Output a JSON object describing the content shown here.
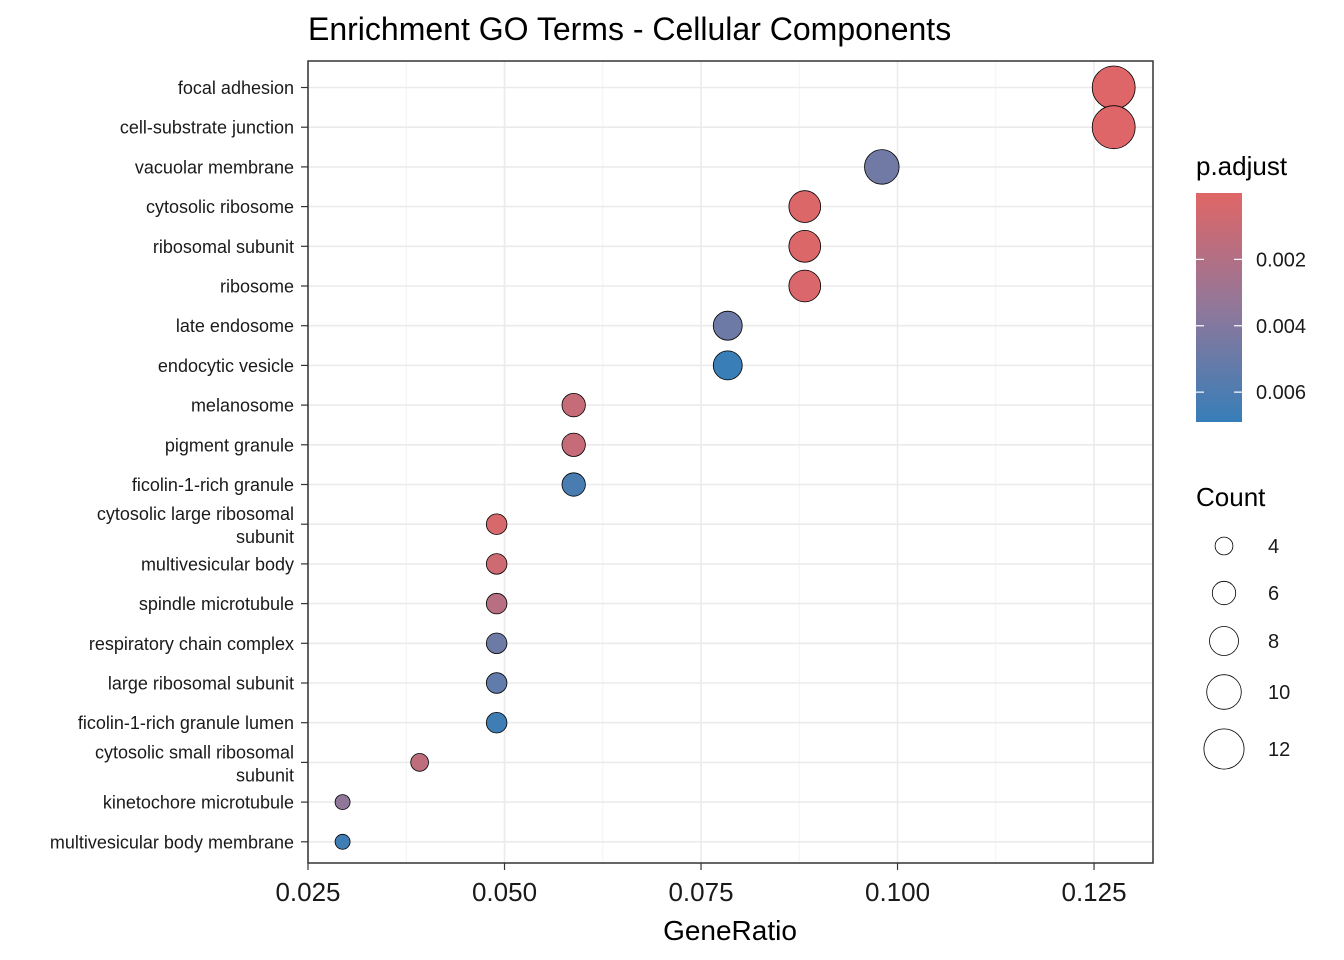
{
  "chart_data": {
    "type": "scatter",
    "title": "Enrichment GO Terms - Cellular Components",
    "xlabel": "GeneRatio",
    "ylabel": "",
    "xlim": [
      0.025,
      0.1325
    ],
    "x_ticks": [
      "0.025",
      "0.050",
      "0.075",
      "0.100",
      "0.125"
    ],
    "x_tick_values": [
      0.025,
      0.05,
      0.075,
      0.1,
      0.125
    ],
    "grid": true,
    "categories": [
      "focal adhesion",
      "cell-substrate junction",
      "vacuolar membrane",
      "cytosolic ribosome",
      "ribosomal subunit",
      "ribosome",
      "late endosome",
      "endocytic vesicle",
      "melanosome",
      "pigment granule",
      "ficolin-1-rich granule",
      "cytosolic large ribosomal subunit",
      "multivesicular body",
      "spindle microtubule",
      "respiratory chain complex",
      "large ribosomal subunit",
      "ficolin-1-rich granule lumen",
      "cytosolic small ribosomal subunit",
      "kinetochore microtubule",
      "multivesicular body membrane"
    ],
    "category_lines": [
      [
        "focal adhesion"
      ],
      [
        "cell-substrate junction"
      ],
      [
        "vacuolar membrane"
      ],
      [
        "cytosolic ribosome"
      ],
      [
        "ribosomal subunit"
      ],
      [
        "ribosome"
      ],
      [
        "late endosome"
      ],
      [
        "endocytic vesicle"
      ],
      [
        "melanosome"
      ],
      [
        "pigment granule"
      ],
      [
        "ficolin-1-rich granule"
      ],
      [
        "cytosolic large ribosomal",
        "subunit"
      ],
      [
        "multivesicular body"
      ],
      [
        "spindle microtubule"
      ],
      [
        "respiratory chain complex"
      ],
      [
        "large ribosomal subunit"
      ],
      [
        "ficolin-1-rich granule lumen"
      ],
      [
        "cytosolic small ribosomal",
        "subunit"
      ],
      [
        "kinetochore microtubule"
      ],
      [
        "multivesicular body membrane"
      ]
    ],
    "points": [
      {
        "term": "focal adhesion",
        "gene_ratio": 0.1275,
        "count": 13,
        "p_adjust": 0.0001
      },
      {
        "term": "cell-substrate junction",
        "gene_ratio": 0.1275,
        "count": 13,
        "p_adjust": 0.0001
      },
      {
        "term": "vacuolar membrane",
        "gene_ratio": 0.098,
        "count": 10,
        "p_adjust": 0.0047
      },
      {
        "term": "cytosolic ribosome",
        "gene_ratio": 0.0882,
        "count": 9,
        "p_adjust": 0.0002
      },
      {
        "term": "ribosomal subunit",
        "gene_ratio": 0.0882,
        "count": 9,
        "p_adjust": 0.0002
      },
      {
        "term": "ribosome",
        "gene_ratio": 0.0882,
        "count": 9,
        "p_adjust": 0.0003
      },
      {
        "term": "late endosome",
        "gene_ratio": 0.0784,
        "count": 8,
        "p_adjust": 0.0048
      },
      {
        "term": "endocytic vesicle",
        "gene_ratio": 0.0784,
        "count": 8,
        "p_adjust": 0.0068
      },
      {
        "term": "melanosome",
        "gene_ratio": 0.0588,
        "count": 6,
        "p_adjust": 0.0012
      },
      {
        "term": "pigment granule",
        "gene_ratio": 0.0588,
        "count": 6,
        "p_adjust": 0.0012
      },
      {
        "term": "ficolin-1-rich granule",
        "gene_ratio": 0.0588,
        "count": 6,
        "p_adjust": 0.0062
      },
      {
        "term": "cytosolic large ribosomal subunit",
        "gene_ratio": 0.049,
        "count": 5,
        "p_adjust": 0.0004
      },
      {
        "term": "multivesicular body",
        "gene_ratio": 0.049,
        "count": 5,
        "p_adjust": 0.0008
      },
      {
        "term": "spindle microtubule",
        "gene_ratio": 0.049,
        "count": 5,
        "p_adjust": 0.0018
      },
      {
        "term": "respiratory chain complex",
        "gene_ratio": 0.049,
        "count": 5,
        "p_adjust": 0.0048
      },
      {
        "term": "large ribosomal subunit",
        "gene_ratio": 0.049,
        "count": 5,
        "p_adjust": 0.0053
      },
      {
        "term": "ficolin-1-rich granule lumen",
        "gene_ratio": 0.049,
        "count": 5,
        "p_adjust": 0.0066
      },
      {
        "term": "cytosolic small ribosomal subunit",
        "gene_ratio": 0.0392,
        "count": 4,
        "p_adjust": 0.0015
      },
      {
        "term": "kinetochore microtubule",
        "gene_ratio": 0.0294,
        "count": 3,
        "p_adjust": 0.0035
      },
      {
        "term": "multivesicular body membrane",
        "gene_ratio": 0.0294,
        "count": 3,
        "p_adjust": 0.0066
      }
    ],
    "color_legend": {
      "title": "p.adjust",
      "low_color": "#E06666",
      "high_color": "#377EB8",
      "range": [
        0,
        0.0069
      ],
      "ticks": [
        0.002,
        0.004,
        0.006
      ],
      "tick_labels": [
        "0.002",
        "0.004",
        "0.006"
      ]
    },
    "size_legend": {
      "title": "Count",
      "values": [
        4,
        6,
        8,
        10,
        12
      ],
      "labels": [
        "4",
        "6",
        "8",
        "10",
        "12"
      ]
    },
    "legend_position": "right"
  }
}
